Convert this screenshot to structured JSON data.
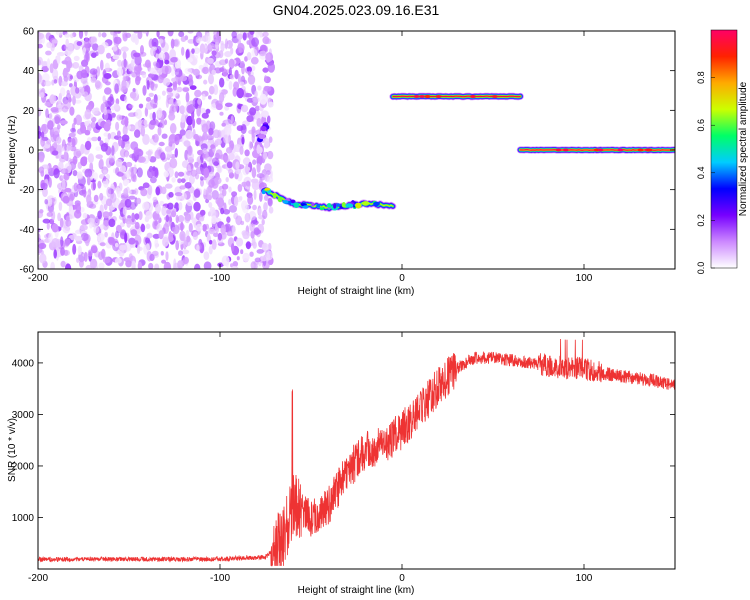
{
  "title": "GN04.2025.023.09.16.E31",
  "chart_data": [
    {
      "type": "heatmap",
      "xlabel": "Height of straight line (km)",
      "ylabel": "Frequency (Hz)",
      "xlim": [
        -200,
        150
      ],
      "ylim": [
        -60,
        60
      ],
      "xticks": [
        -200,
        -100,
        0,
        100
      ],
      "yticks": [
        -60,
        -40,
        -20,
        0,
        20,
        40,
        60
      ],
      "grid": false,
      "colorbar": {
        "label": "Normalized spectral amplitude",
        "range": [
          0.0,
          1.0
        ],
        "ticks": [
          "0.0",
          "0.2",
          "0.4",
          "0.6",
          "0.8"
        ],
        "colors": [
          "#ffffff",
          "#cc88ff",
          "#7700ff",
          "#0000ff",
          "#00ccff",
          "#00ff66",
          "#ccff00",
          "#ffaa00",
          "#ff2200",
          "#ff0066"
        ]
      },
      "noise_region": {
        "x": [
          -200,
          -75
        ],
        "y": [
          -60,
          60
        ],
        "level": 0.15
      },
      "tracks": [
        {
          "x": [
            -78,
            -75
          ],
          "y": [
            6,
            12
          ],
          "peak": 0.3
        },
        {
          "x": [
            -76,
            -60,
            -40,
            -20,
            -5
          ],
          "y": [
            -20,
            -27,
            -29,
            -27,
            -28
          ],
          "peak": 0.7
        },
        {
          "x": [
            -5,
            65
          ],
          "y": [
            27,
            27
          ],
          "peak": 0.95
        },
        {
          "x": [
            65,
            150
          ],
          "y": [
            0,
            0
          ],
          "peak": 0.95
        }
      ]
    },
    {
      "type": "line",
      "xlabel": "Height of straight line (km)",
      "ylabel": "SNR (10 * v/v)",
      "xlim": [
        -200,
        150
      ],
      "ylim": [
        0,
        4600
      ],
      "xticks": [
        -200,
        -100,
        0,
        100
      ],
      "yticks": [
        1000,
        2000,
        3000,
        4000
      ],
      "grid": false,
      "series": [
        {
          "color": "#ee3333",
          "x": [
            -200,
            -150,
            -100,
            -75,
            -65,
            -60,
            -55,
            -50,
            -40,
            -30,
            -20,
            -10,
            0,
            10,
            20,
            30,
            40,
            50,
            60,
            70,
            80,
            90,
            100,
            110,
            120,
            130,
            140,
            150
          ],
          "y": [
            190,
            190,
            190,
            230,
            600,
            1200,
            1200,
            1000,
            1250,
            1900,
            2300,
            2400,
            2700,
            3100,
            3550,
            3900,
            4100,
            4100,
            4050,
            4000,
            3950,
            3900,
            3900,
            3800,
            3750,
            3700,
            3650,
            3550
          ]
        }
      ]
    }
  ]
}
